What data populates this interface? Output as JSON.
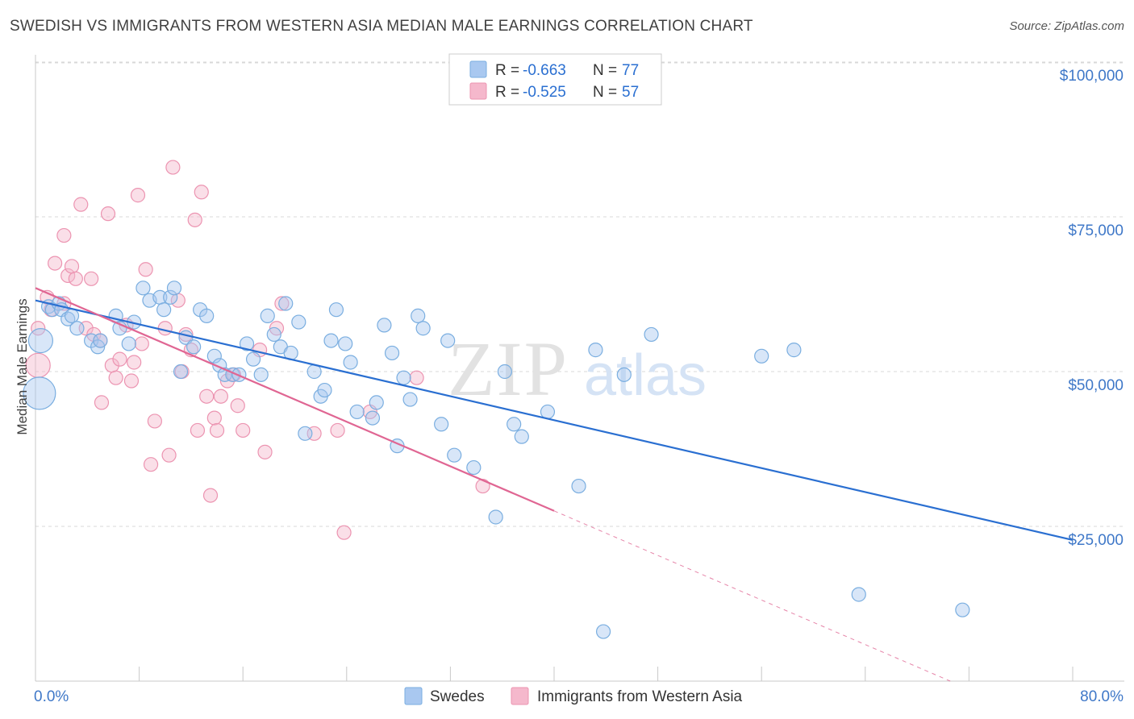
{
  "title": "SWEDISH VS IMMIGRANTS FROM WESTERN ASIA MEDIAN MALE EARNINGS CORRELATION CHART",
  "source": "Source: ZipAtlas.com",
  "watermark": {
    "zip": "ZIP",
    "atlas": "atlas"
  },
  "legend_box": {
    "rows": [
      {
        "r_label": "R = ",
        "r_value": "-0.663",
        "n_label": "N = ",
        "n_value": "77",
        "series": "Swedes"
      },
      {
        "r_label": "R = ",
        "r_value": "-0.525",
        "n_label": "N = ",
        "n_value": "57",
        "series": "Immigrants from Western Asia"
      }
    ]
  },
  "colors": {
    "blue_fill": "#a9c8f0",
    "blue_stroke": "#7aaee0",
    "blue_line": "#2a6fd1",
    "pink_fill": "#f5b8cc",
    "pink_stroke": "#ec94b1",
    "pink_line": "#e06693",
    "axis_label": "#3f78c8",
    "grid": "#d8d8d8"
  },
  "chart_data": {
    "type": "scatter",
    "title": "SWEDISH VS IMMIGRANTS FROM WESTERN ASIA MEDIAN MALE EARNINGS CORRELATION CHART",
    "xlabel": "",
    "ylabel": "Median Male Earnings",
    "xlim": [
      0,
      80
    ],
    "ylim": [
      0,
      100000
    ],
    "x_tick_labels": [
      "0.0%",
      "80.0%"
    ],
    "y_ticks": [
      25000,
      50000,
      75000,
      100000
    ],
    "y_tick_labels": [
      "$25,000",
      "$50,000",
      "$75,000",
      "$100,000"
    ],
    "grid": true,
    "legend_position": "bottom-center",
    "series": [
      {
        "name": "Swedes",
        "color": "blue",
        "r": -0.663,
        "n": 77,
        "trend": {
          "x": [
            0,
            80
          ],
          "y": [
            61500,
            22800
          ]
        },
        "points": [
          [
            0.3,
            46500,
            3
          ],
          [
            0.4,
            55000,
            2
          ],
          [
            1.0,
            60500,
            1
          ],
          [
            1.3,
            60000,
            1
          ],
          [
            1.8,
            61000,
            1
          ],
          [
            2.0,
            60000,
            1
          ],
          [
            2.5,
            58500,
            1
          ],
          [
            2.8,
            59000,
            1
          ],
          [
            3.2,
            57000,
            1
          ],
          [
            4.3,
            55000,
            1
          ],
          [
            4.8,
            54000,
            1
          ],
          [
            5.0,
            55000,
            1
          ],
          [
            6.2,
            59000,
            1
          ],
          [
            6.5,
            57000,
            1
          ],
          [
            7.2,
            54500,
            1
          ],
          [
            7.6,
            58000,
            1
          ],
          [
            8.3,
            63500,
            1
          ],
          [
            8.8,
            61500,
            1
          ],
          [
            9.6,
            62000,
            1
          ],
          [
            9.9,
            60000,
            1
          ],
          [
            10.4,
            62000,
            1
          ],
          [
            10.7,
            63500,
            1
          ],
          [
            11.2,
            50000,
            1
          ],
          [
            11.6,
            55500,
            1
          ],
          [
            12.2,
            54000,
            1
          ],
          [
            12.7,
            60000,
            1
          ],
          [
            13.2,
            59000,
            1
          ],
          [
            13.8,
            52500,
            1
          ],
          [
            14.2,
            51000,
            1
          ],
          [
            14.6,
            49500,
            1
          ],
          [
            15.2,
            49500,
            1
          ],
          [
            15.7,
            49500,
            1
          ],
          [
            16.3,
            54500,
            1
          ],
          [
            16.8,
            52000,
            1
          ],
          [
            17.4,
            49500,
            1
          ],
          [
            17.9,
            59000,
            1
          ],
          [
            18.4,
            56000,
            1
          ],
          [
            18.9,
            54000,
            1
          ],
          [
            19.3,
            61000,
            1
          ],
          [
            19.7,
            53000,
            1
          ],
          [
            20.3,
            58000,
            1
          ],
          [
            20.8,
            40000,
            1
          ],
          [
            21.5,
            50000,
            1
          ],
          [
            22.0,
            46000,
            1
          ],
          [
            22.3,
            47000,
            1
          ],
          [
            22.8,
            55000,
            1
          ],
          [
            23.2,
            60000,
            1
          ],
          [
            23.9,
            54500,
            1
          ],
          [
            24.3,
            51500,
            1
          ],
          [
            24.8,
            43500,
            1
          ],
          [
            26.0,
            42500,
            1
          ],
          [
            26.3,
            45000,
            1
          ],
          [
            26.9,
            57500,
            1
          ],
          [
            27.5,
            53000,
            1
          ],
          [
            27.9,
            38000,
            1
          ],
          [
            28.4,
            49000,
            1
          ],
          [
            28.9,
            45500,
            1
          ],
          [
            29.5,
            59000,
            1
          ],
          [
            29.9,
            57000,
            1
          ],
          [
            31.3,
            41500,
            1
          ],
          [
            31.8,
            55000,
            1
          ],
          [
            32.3,
            36500,
            1
          ],
          [
            33.8,
            34500,
            1
          ],
          [
            35.5,
            26500,
            1
          ],
          [
            36.2,
            50000,
            1
          ],
          [
            36.9,
            41500,
            1
          ],
          [
            37.5,
            39500,
            1
          ],
          [
            39.5,
            43500,
            1
          ],
          [
            41.9,
            31500,
            1
          ],
          [
            43.2,
            53500,
            1
          ],
          [
            43.8,
            8000,
            1
          ],
          [
            45.4,
            49500,
            1
          ],
          [
            47.5,
            56000,
            1
          ],
          [
            56.0,
            52500,
            1
          ],
          [
            58.5,
            53500,
            1
          ],
          [
            63.5,
            14000,
            1
          ],
          [
            71.5,
            11500,
            1
          ]
        ]
      },
      {
        "name": "Immigrants from Western Asia",
        "color": "pink",
        "r": -0.525,
        "n": 57,
        "trend": {
          "x": [
            0,
            40
          ],
          "y": [
            63500,
            27500
          ]
        },
        "trend_dashed": {
          "x": [
            40,
            80
          ],
          "y": [
            27500,
            -8500
          ]
        },
        "points": [
          [
            0.2,
            51000,
            2
          ],
          [
            0.2,
            57000,
            1
          ],
          [
            0.9,
            62000,
            1
          ],
          [
            1.2,
            60000,
            1
          ],
          [
            1.5,
            67500,
            1
          ],
          [
            2.2,
            61000,
            1
          ],
          [
            2.2,
            72000,
            1
          ],
          [
            2.5,
            65500,
            1
          ],
          [
            2.8,
            67000,
            1
          ],
          [
            3.1,
            65000,
            1
          ],
          [
            3.5,
            77000,
            1
          ],
          [
            3.9,
            57000,
            1
          ],
          [
            4.3,
            65000,
            1
          ],
          [
            4.5,
            56000,
            1
          ],
          [
            5.0,
            55000,
            1
          ],
          [
            5.1,
            45000,
            1
          ],
          [
            5.6,
            75500,
            1
          ],
          [
            5.9,
            51000,
            1
          ],
          [
            6.2,
            49000,
            1
          ],
          [
            6.5,
            52000,
            1
          ],
          [
            7.0,
            57500,
            1
          ],
          [
            7.4,
            48500,
            1
          ],
          [
            7.6,
            51500,
            1
          ],
          [
            7.9,
            78500,
            1
          ],
          [
            8.2,
            54500,
            1
          ],
          [
            8.5,
            66500,
            1
          ],
          [
            8.9,
            35000,
            1
          ],
          [
            9.2,
            42000,
            1
          ],
          [
            10.0,
            57000,
            1
          ],
          [
            10.3,
            36500,
            1
          ],
          [
            10.6,
            83000,
            1
          ],
          [
            11.0,
            61500,
            1
          ],
          [
            11.3,
            50000,
            1
          ],
          [
            11.6,
            56000,
            1
          ],
          [
            12.0,
            53500,
            1
          ],
          [
            12.3,
            74500,
            1
          ],
          [
            12.5,
            40500,
            1
          ],
          [
            12.8,
            79000,
            1
          ],
          [
            13.2,
            46000,
            1
          ],
          [
            13.5,
            30000,
            1
          ],
          [
            13.8,
            42500,
            1
          ],
          [
            14.0,
            40500,
            1
          ],
          [
            14.3,
            46000,
            1
          ],
          [
            14.8,
            48500,
            1
          ],
          [
            15.3,
            49500,
            1
          ],
          [
            15.6,
            44500,
            1
          ],
          [
            16.0,
            40500,
            1
          ],
          [
            17.3,
            53500,
            1
          ],
          [
            17.7,
            37000,
            1
          ],
          [
            18.6,
            57000,
            1
          ],
          [
            19.0,
            61000,
            1
          ],
          [
            21.5,
            40000,
            1
          ],
          [
            23.3,
            40500,
            1
          ],
          [
            23.8,
            24000,
            1
          ],
          [
            25.8,
            43500,
            1
          ],
          [
            29.4,
            49000,
            1
          ],
          [
            34.5,
            31500,
            1
          ]
        ]
      }
    ]
  },
  "bottom_legend": [
    {
      "label": "Swedes",
      "color": "blue"
    },
    {
      "label": "Immigrants from Western Asia",
      "color": "pink"
    }
  ]
}
